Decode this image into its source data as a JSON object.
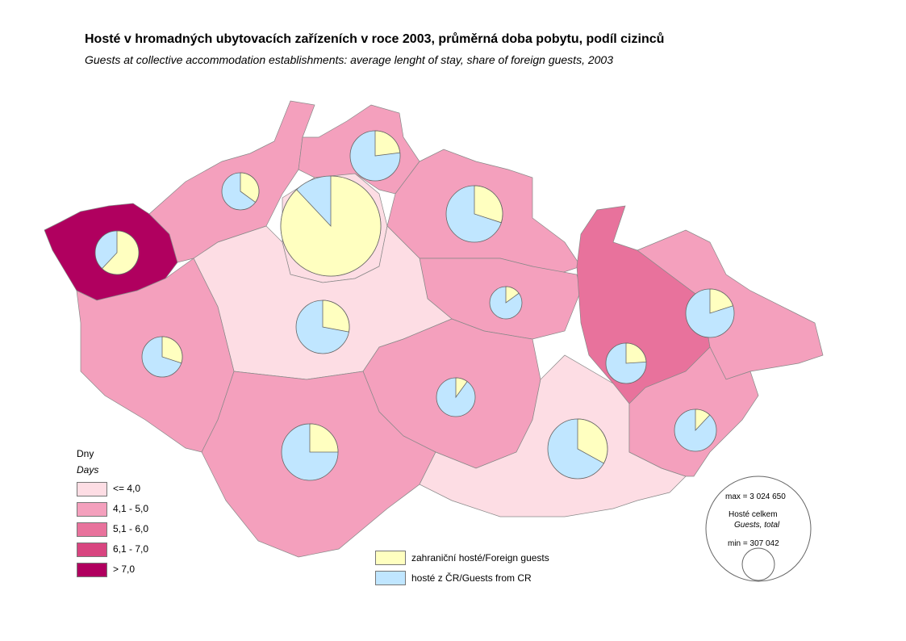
{
  "title": "Hosté v hromadných ubytovacích zařízeních v roce 2003, průměrná doba pobytu, podíl cizinců",
  "subtitle": "Guests at collective accommodation establishments: average lenght of stay, share of foreign guests, 2003",
  "legend_days": {
    "title": "Dny",
    "subtitle": "Days",
    "classes": [
      {
        "label": "<=  4,0",
        "color": "#fddde4"
      },
      {
        "label": "4,1 - 5,0",
        "color": "#f4a0bd"
      },
      {
        "label": "5,1 - 6,0",
        "color": "#e8729c"
      },
      {
        "label": "6,1 - 7,0",
        "color": "#d84580"
      },
      {
        "label": "> 7,0",
        "color": "#b0005f"
      }
    ]
  },
  "legend_pie": {
    "foreign": "zahraniční hosté/Foreign guests",
    "domestic": "hosté z ČR/Guests from CR",
    "foreign_color": "#ffffc0",
    "domestic_color": "#c0e6ff"
  },
  "legend_size": {
    "max": "max = 3 024 650",
    "label": "Hosté celkem",
    "label_en": "Guests, total",
    "min": "min = 307 042"
  },
  "regions": [
    {
      "class": 4,
      "foreign_share": 0.62
    },
    {
      "class": 1,
      "foreign_share": 0.35
    },
    {
      "class": 1,
      "foreign_share": 0.23
    },
    {
      "class": 0,
      "foreign_share": 0.88
    },
    {
      "class": 1,
      "foreign_share": 0.3
    },
    {
      "class": 1,
      "foreign_share": 0.15
    },
    {
      "class": 2,
      "foreign_share": 0.24
    },
    {
      "class": 1,
      "foreign_share": 0.2
    },
    {
      "class": 0,
      "foreign_share": 0.28
    },
    {
      "class": 1,
      "foreign_share": 0.3
    },
    {
      "class": 1,
      "foreign_share": 0.1
    },
    {
      "class": 1,
      "foreign_share": 0.25
    },
    {
      "class": 0,
      "foreign_share": 0.33
    },
    {
      "class": 1,
      "foreign_share": 0.12
    }
  ]
}
